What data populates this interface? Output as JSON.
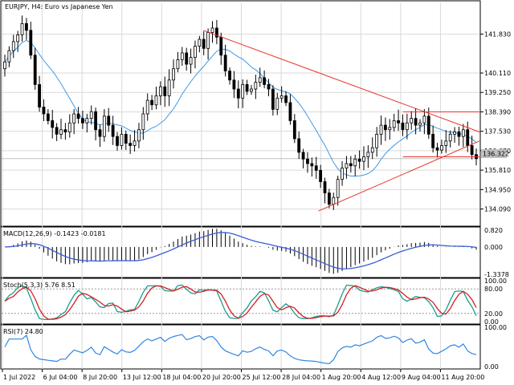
{
  "chart_data": {
    "type": "candlestick",
    "symbol_title": "EURJPY, H4:  Euro vs Japanese Yen",
    "colors": {
      "candle": "#000000",
      "ma": "#3d9ae8",
      "trendline": "#e8332f",
      "macd_hist": "#000000",
      "macd_signal": "#3b5bd6",
      "stoch_main": "#1a9c92",
      "stoch_signal": "#d81e1e",
      "rsi": "#2f86e0",
      "grid": "#d9d9d9",
      "current_price_bg": "#c0c0c0"
    },
    "price_panel": {
      "ylim": [
        133.4,
        143.2
      ],
      "ticks": [
        "141.830",
        "140.110",
        "139.250",
        "138.390",
        "137.530",
        "136.670",
        "135.810",
        "134.950",
        "134.090"
      ],
      "tick_values": [
        141.83,
        140.11,
        139.25,
        138.39,
        137.53,
        136.67,
        135.81,
        134.95,
        134.09
      ],
      "current_price": "136.322",
      "current_price_value": 136.322,
      "close": [
        140.6,
        141.1,
        141.5,
        141.8,
        142.3,
        142.0,
        140.9,
        139.6,
        138.6,
        138.3,
        138.0,
        137.7,
        137.4,
        137.6,
        137.5,
        137.9,
        138.3,
        138.1,
        137.9,
        138.1,
        138.4,
        137.6,
        137.3,
        138.2,
        137.8,
        137.3,
        136.9,
        137.4,
        137.0,
        136.9,
        137.1,
        137.6,
        138.3,
        138.9,
        138.7,
        139.1,
        139.5,
        139.1,
        139.8,
        140.3,
        140.7,
        141.0,
        140.5,
        140.8,
        141.3,
        141.6,
        141.2,
        141.9,
        142.1,
        141.7,
        140.9,
        140.2,
        139.8,
        139.4,
        139.0,
        139.6,
        139.3,
        139.4,
        139.7,
        139.9,
        139.6,
        139.4,
        138.5,
        139.0,
        139.1,
        138.8,
        138.0,
        137.2,
        136.6,
        136.3,
        136.1,
        136.0,
        135.8,
        135.3,
        134.8,
        134.3,
        134.6,
        135.4,
        135.9,
        136.1,
        136.0,
        136.3,
        136.2,
        136.4,
        136.6,
        136.8,
        137.4,
        137.8,
        137.6,
        137.7,
        138.0,
        137.9,
        137.6,
        137.9,
        138.1,
        137.8,
        137.9,
        138.2,
        137.4,
        136.8,
        136.7,
        136.9,
        137.1,
        137.4,
        137.5,
        137.3,
        137.6,
        136.9,
        136.5,
        136.32
      ],
      "ma_value_range": [
        136.4,
        141.9
      ],
      "lines": [
        {
          "from": {
            "x": 0.422,
            "y": 142.0
          },
          "to": {
            "x": 1.0,
            "y": 137.5
          }
        },
        {
          "from": {
            "x": 0.663,
            "y": 134.0
          },
          "to": {
            "x": 1.0,
            "y": 137.1
          }
        },
        {
          "from": {
            "x": 0.84,
            "y": 138.39
          },
          "to": {
            "x": 1.0,
            "y": 138.39
          }
        },
        {
          "from": {
            "x": 0.84,
            "y": 136.4
          },
          "to": {
            "x": 1.0,
            "y": 136.4
          }
        }
      ]
    },
    "macd_panel": {
      "title": "MACD(12,26,9) -0.1423 -0.0181",
      "ticks": [
        "0.820",
        "0.000",
        "-1.3378"
      ],
      "tick_values": [
        0.82,
        0.0,
        -1.3378
      ],
      "ylim": [
        -1.3378,
        0.82
      ]
    },
    "stoch_panel": {
      "title": "Stoch(5,3,3) 5.76 8.51",
      "ticks": [
        "100.00",
        "80.00",
        "20.00",
        "0.00"
      ],
      "tick_values": [
        100,
        80,
        20,
        0
      ],
      "ylim": [
        0,
        100
      ]
    },
    "rsi_panel": {
      "title": "RSI(7) 24.80",
      "ticks": [
        "100.00",
        "0.00"
      ],
      "tick_values": [
        100,
        0
      ],
      "ylim": [
        0,
        100
      ]
    },
    "x_axis": {
      "labels": [
        "1 Jul 2022",
        "6 Jul 04:00",
        "8 Jul 20:00",
        "13 Jul 12:00",
        "18 Jul 04:00",
        "20 Jul 20:00",
        "25 Jul 12:00",
        "28 Jul 04:00",
        "1 Aug 20:00",
        "4 Aug 12:00",
        "9 Aug 04:00",
        "11 Aug 20:00"
      ]
    }
  }
}
